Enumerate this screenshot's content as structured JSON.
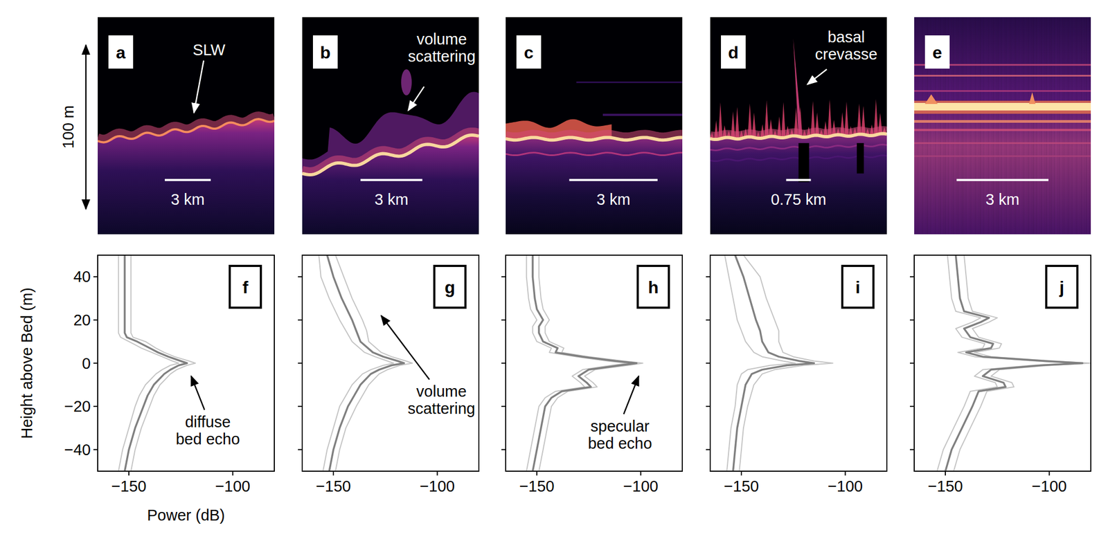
{
  "scale_label": "100 m",
  "radargrams": [
    {
      "letter": "a",
      "annotation": "SLW",
      "scale_bar": "3 km"
    },
    {
      "letter": "b",
      "annotation": "volume scattering",
      "scale_bar": "3 km"
    },
    {
      "letter": "c",
      "scale_bar": "3 km"
    },
    {
      "letter": "d",
      "annotation": "basal crevasse",
      "scale_bar": "0.75 km"
    },
    {
      "letter": "e",
      "scale_bar": "3 km"
    }
  ],
  "chart_data": [
    {
      "type": "line",
      "title": "f",
      "xlabel": "Power (dB)",
      "ylabel": "Height above Bed (m)",
      "xlim": [
        -165,
        -80
      ],
      "ylim": [
        -50,
        50
      ],
      "xticks": [
        {
          "value": -150,
          "label": "−150"
        },
        {
          "value": -100,
          "label": "−100"
        }
      ],
      "yticks": [
        {
          "value": -40,
          "label": "−40"
        },
        {
          "value": -20,
          "label": "−20"
        },
        {
          "value": 0,
          "label": "0"
        },
        {
          "value": 20,
          "label": "20"
        },
        {
          "value": 40,
          "label": "40"
        }
      ],
      "annotations": [
        {
          "text": "diffuse bed echo",
          "xy": [
            -120,
            -6
          ],
          "xytext": [
            -112,
            -31
          ]
        }
      ],
      "series": [
        {
          "color": "#c4c4c4",
          "x": [
            -155,
            -155,
            -155,
            -155,
            -155,
            -154,
            -150,
            -144,
            -139,
            -134,
            -129,
            -126,
            -130,
            -134,
            -137,
            -140,
            -142,
            -145,
            -147,
            -150,
            -153,
            -155
          ],
          "values": [
            50,
            40,
            30,
            20,
            14,
            12,
            10,
            7,
            5,
            3,
            1,
            0,
            -1,
            -3,
            -5,
            -8,
            -10,
            -15,
            -20,
            -30,
            -40,
            -50
          ]
        },
        {
          "color": "#c4c4c4",
          "x": [
            -149,
            -149,
            -149,
            -149,
            -149,
            -148,
            -142,
            -137,
            -133,
            -128,
            -121,
            -118,
            -122,
            -127,
            -130,
            -133,
            -135,
            -138,
            -140,
            -144,
            -147,
            -149
          ],
          "values": [
            50,
            40,
            30,
            20,
            14,
            12,
            10,
            7,
            5,
            3,
            1,
            0,
            -1,
            -3,
            -5,
            -8,
            -10,
            -15,
            -20,
            -30,
            -40,
            -50
          ]
        },
        {
          "color": "#808080",
          "x": [
            -152,
            -152,
            -152,
            -152,
            -152,
            -151,
            -146,
            -140,
            -136,
            -131,
            -125,
            -122,
            -126,
            -130,
            -133,
            -136,
            -138,
            -141,
            -143,
            -147,
            -150,
            -152
          ],
          "values": [
            50,
            40,
            30,
            20,
            14,
            12,
            10,
            7,
            5,
            3,
            1,
            0,
            -1,
            -3,
            -5,
            -8,
            -10,
            -15,
            -20,
            -30,
            -40,
            -50
          ]
        }
      ]
    },
    {
      "type": "line",
      "title": "g",
      "tick_labels": "x",
      "xlim": [
        -165,
        -80
      ],
      "ylim": [
        -50,
        50
      ],
      "xticks": [
        {
          "value": -150,
          "label": "−150"
        },
        {
          "value": -100,
          "label": "−100"
        }
      ],
      "yticks": [
        -40,
        -20,
        0,
        20,
        40
      ],
      "annotations": [
        {
          "text": "volume scattering",
          "xy": [
            -127,
            22
          ],
          "xytext": [
            -98,
            -17
          ]
        }
      ],
      "series": [
        {
          "color": "#c4c4c4",
          "x": [
            -157,
            -156,
            -152,
            -147,
            -144,
            -141,
            -135,
            -130,
            -124,
            -121,
            -126,
            -132,
            -136,
            -141,
            -144,
            -147,
            -150,
            -153,
            -155
          ],
          "values": [
            50,
            40,
            30,
            20,
            15,
            10,
            5,
            3,
            1,
            0,
            -1,
            -3,
            -5,
            -10,
            -15,
            -20,
            -30,
            -40,
            -50
          ]
        },
        {
          "color": "#c4c4c4",
          "x": [
            -149,
            -145,
            -141,
            -136,
            -134,
            -133,
            -127,
            -122,
            -115,
            -112,
            -118,
            -124,
            -128,
            -133,
            -136,
            -139,
            -144,
            -147,
            -149
          ],
          "values": [
            50,
            40,
            30,
            20,
            15,
            10,
            5,
            3,
            1,
            0,
            -1,
            -3,
            -5,
            -10,
            -15,
            -20,
            -30,
            -40,
            -50
          ]
        },
        {
          "color": "#808080",
          "x": [
            -153,
            -150,
            -146,
            -141,
            -139,
            -137,
            -131,
            -126,
            -119,
            -116,
            -122,
            -128,
            -132,
            -137,
            -140,
            -143,
            -147,
            -150,
            -152
          ],
          "values": [
            50,
            40,
            30,
            20,
            15,
            10,
            5,
            3,
            1,
            0,
            -1,
            -3,
            -5,
            -10,
            -15,
            -20,
            -30,
            -40,
            -50
          ]
        }
      ]
    },
    {
      "type": "line",
      "title": "h",
      "tick_labels": "x",
      "xlim": [
        -165,
        -80
      ],
      "ylim": [
        -50,
        50
      ],
      "xticks": [
        {
          "value": -150,
          "label": "−150"
        },
        {
          "value": -100,
          "label": "−100"
        }
      ],
      "yticks": [
        -40,
        -20,
        0,
        20,
        40
      ],
      "annotations": [
        {
          "text": "specular bed echo",
          "xy": [
            -101,
            -6
          ],
          "xytext": [
            -110,
            -33
          ]
        }
      ],
      "series": [
        {
          "color": "#c4c4c4",
          "x": [
            -155,
            -155,
            -154,
            -153,
            -150,
            -152,
            -152,
            -150,
            -143,
            -144,
            -131,
            -116,
            -106,
            -114,
            -128,
            -133,
            -129,
            -127,
            -141,
            -146,
            -149,
            -151,
            -153,
            -155
          ],
          "values": [
            50,
            40,
            30,
            25,
            20,
            17,
            14,
            10,
            7,
            5,
            3,
            1,
            0,
            -1,
            -3,
            -6,
            -9,
            -11,
            -13,
            -16,
            -20,
            -30,
            -40,
            -50
          ]
        },
        {
          "color": "#c4c4c4",
          "x": [
            -149,
            -149,
            -148,
            -147,
            -144,
            -146,
            -146,
            -144,
            -137,
            -138,
            -125,
            -108,
            -99,
            -106,
            -122,
            -127,
            -123,
            -121,
            -135,
            -140,
            -143,
            -145,
            -147,
            -149
          ],
          "values": [
            50,
            40,
            30,
            25,
            20,
            17,
            14,
            10,
            7,
            5,
            3,
            1,
            0,
            -1,
            -3,
            -6,
            -9,
            -11,
            -13,
            -16,
            -20,
            -30,
            -40,
            -50
          ]
        },
        {
          "color": "#808080",
          "x": [
            -152,
            -152,
            -151,
            -150,
            -147,
            -149,
            -149,
            -147,
            -140,
            -141,
            -128,
            -112,
            -102,
            -110,
            -125,
            -130,
            -126,
            -124,
            -138,
            -143,
            -146,
            -148,
            -150,
            -152
          ],
          "values": [
            50,
            40,
            30,
            25,
            20,
            17,
            14,
            10,
            7,
            5,
            3,
            1,
            0,
            -1,
            -3,
            -6,
            -9,
            -11,
            -13,
            -16,
            -20,
            -30,
            -40,
            -50
          ]
        }
      ]
    },
    {
      "type": "line",
      "title": "i",
      "tick_labels": "x",
      "xlim": [
        -165,
        -80
      ],
      "ylim": [
        -50,
        50
      ],
      "xticks": [
        {
          "value": -150,
          "label": "−150"
        },
        {
          "value": -100,
          "label": "−100"
        }
      ],
      "yticks": [
        -40,
        -20,
        0,
        20,
        40
      ],
      "series": [
        {
          "color": "#c4c4c4",
          "x": [
            -158,
            -156,
            -154,
            -152,
            -150,
            -148,
            -144,
            -140,
            -130,
            -124,
            -136,
            -147,
            -150,
            -152,
            -153,
            -155,
            -156,
            -157
          ],
          "values": [
            50,
            40,
            30,
            20,
            15,
            10,
            5,
            3,
            1,
            0,
            -1,
            -3,
            -5,
            -10,
            -20,
            -30,
            -40,
            -50
          ]
        },
        {
          "color": "#c4c4c4",
          "x": [
            -149,
            -141,
            -138,
            -134,
            -132,
            -132,
            -130,
            -125,
            -115,
            -106,
            -120,
            -134,
            -140,
            -144,
            -147,
            -149,
            -150,
            -151
          ],
          "values": [
            50,
            40,
            30,
            20,
            15,
            10,
            5,
            3,
            1,
            0,
            -1,
            -3,
            -5,
            -10,
            -20,
            -30,
            -40,
            -50
          ]
        },
        {
          "color": "#808080",
          "x": [
            -153,
            -149,
            -146,
            -143,
            -141,
            -140,
            -137,
            -132,
            -122,
            -115,
            -128,
            -140,
            -145,
            -148,
            -150,
            -152,
            -153,
            -154
          ],
          "values": [
            50,
            40,
            30,
            20,
            15,
            10,
            5,
            3,
            1,
            0,
            -1,
            -3,
            -5,
            -10,
            -20,
            -30,
            -40,
            -50
          ]
        }
      ]
    },
    {
      "type": "line",
      "title": "j",
      "tick_labels": "x",
      "xlim": [
        -165,
        -80
      ],
      "ylim": [
        -50,
        50
      ],
      "xticks": [
        {
          "value": -150,
          "label": "−150"
        },
        {
          "value": -100,
          "label": "−100"
        }
      ],
      "yticks": [
        -40,
        -20,
        0,
        20,
        40
      ],
      "series": [
        {
          "color": "#c4c4c4",
          "x": [
            -149,
            -148,
            -147,
            -145,
            -133,
            -137,
            -145,
            -142,
            -131,
            -132,
            -144,
            -136,
            -106,
            -88,
            -108,
            -132,
            -136,
            -126,
            -125,
            -138,
            -141,
            -146,
            -151,
            -154
          ],
          "values": [
            50,
            40,
            30,
            24,
            21,
            19,
            16,
            12,
            9,
            7,
            5,
            3,
            1,
            0,
            -1,
            -3,
            -6,
            -9,
            -11,
            -13,
            -20,
            -30,
            -40,
            -50
          ]
        },
        {
          "color": "#c4c4c4",
          "x": [
            -141,
            -140,
            -139,
            -137,
            -125,
            -129,
            -137,
            -134,
            -123,
            -124,
            -136,
            -128,
            -98,
            -80,
            -100,
            -124,
            -128,
            -118,
            -117,
            -130,
            -133,
            -138,
            -143,
            -146
          ],
          "values": [
            50,
            40,
            30,
            24,
            21,
            19,
            16,
            12,
            9,
            7,
            5,
            3,
            1,
            0,
            -1,
            -3,
            -6,
            -9,
            -11,
            -13,
            -20,
            -30,
            -40,
            -50
          ]
        },
        {
          "color": "#808080",
          "x": [
            -145,
            -144,
            -143,
            -141,
            -129,
            -133,
            -141,
            -138,
            -127,
            -128,
            -140,
            -132,
            -102,
            -84,
            -104,
            -128,
            -132,
            -122,
            -121,
            -134,
            -137,
            -142,
            -147,
            -150
          ],
          "values": [
            50,
            40,
            30,
            24,
            21,
            19,
            16,
            12,
            9,
            7,
            5,
            3,
            1,
            0,
            -1,
            -3,
            -6,
            -9,
            -11,
            -13,
            -20,
            -30,
            -40,
            -50
          ]
        }
      ]
    }
  ]
}
